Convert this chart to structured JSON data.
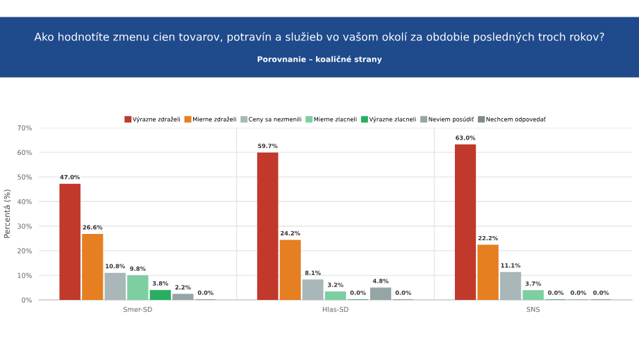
{
  "chart_data": {
    "type": "bar",
    "title": "Ako hodnotíte zmenu cien tovarov, potravín a služieb vo vašom okolí za obdobie posledných troch rokov?",
    "subtitle": "Porovnanie – koaličné strany",
    "ylabel": "Percentá (%)",
    "categories": [
      "Smer-SD",
      "Hlas-SD",
      "SNS"
    ],
    "series": [
      {
        "name": "Výrazne zdraželi",
        "color": "#c0392b",
        "values": [
          47.0,
          59.7,
          63.0
        ],
        "value_labels": [
          "47.0%",
          "59.7%",
          "63.0%"
        ]
      },
      {
        "name": "Mierne zdraželi",
        "color": "#e67e22",
        "values": [
          26.6,
          24.2,
          22.2
        ],
        "value_labels": [
          "26.6%",
          "24.2%",
          "22.2%"
        ]
      },
      {
        "name": "Ceny sa nezmenili",
        "color": "#aab7b8",
        "values": [
          10.8,
          8.1,
          11.1
        ],
        "value_labels": [
          "10.8%",
          "8.1%",
          "11.1%"
        ]
      },
      {
        "name": "Mierne zlacneli",
        "color": "#7dcea0",
        "values": [
          9.8,
          3.2,
          3.7
        ],
        "value_labels": [
          "9.8%",
          "3.2%",
          "3.7%"
        ]
      },
      {
        "name": "Výrazne zlacneli",
        "color": "#27ae60",
        "values": [
          3.8,
          0.0,
          0.0
        ],
        "value_labels": [
          "3.8%",
          "0.0%",
          "0.0%"
        ]
      },
      {
        "name": "Neviem posúdiť",
        "color": "#95a5a6",
        "values": [
          2.2,
          4.8,
          0.0
        ],
        "value_labels": [
          "2.2%",
          "4.8%",
          "0.0%"
        ]
      },
      {
        "name": "Nechcem odpovedať",
        "color": "#7f8c8d",
        "values": [
          0.0,
          0.0,
          0.0
        ],
        "value_labels": [
          "0.0%",
          "0.0%",
          "0.0%"
        ]
      }
    ],
    "ylim": [
      0,
      70
    ],
    "yticks": [
      {
        "value": 0,
        "label": "0%"
      },
      {
        "value": 10,
        "label": "10%"
      },
      {
        "value": 20,
        "label": "20%"
      },
      {
        "value": 30,
        "label": "30%"
      },
      {
        "value": 40,
        "label": "40%"
      },
      {
        "value": 50,
        "label": "50%"
      },
      {
        "value": 60,
        "label": "60%"
      },
      {
        "value": 70,
        "label": "70%"
      }
    ],
    "grid": true,
    "legend": "top"
  }
}
